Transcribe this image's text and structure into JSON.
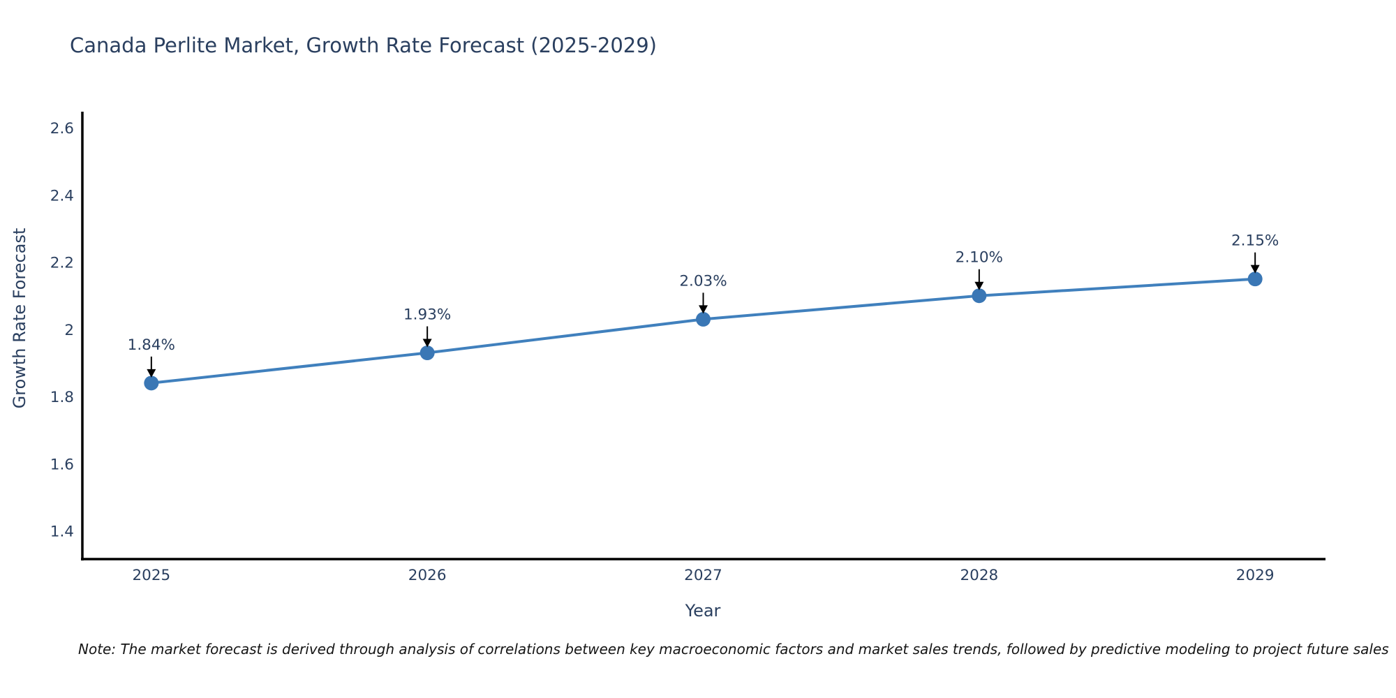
{
  "chart": {
    "note": "Note: The market forecast is derived through analysis of correlations between key macroeconomic factors and market sales trends, followed by predictive modeling to project future sales"
  },
  "chart_data": {
    "type": "line",
    "title": "Canada Perlite Market, Growth Rate Forecast (2025-2029)",
    "xlabel": "Year",
    "ylabel": "Growth Rate Forecast",
    "x": [
      2025,
      2026,
      2027,
      2028,
      2029
    ],
    "values": [
      1.84,
      1.93,
      2.03,
      2.1,
      2.15
    ],
    "point_labels": [
      "1.84%",
      "1.93%",
      "2.03%",
      "2.10%",
      "2.15%"
    ],
    "x_tick_labels": [
      "2025",
      "2026",
      "2027",
      "2028",
      "2029"
    ],
    "y_ticks": [
      2.6,
      2.4,
      2.2,
      2.0,
      1.8,
      1.6,
      1.4
    ],
    "y_tick_labels": [
      "2.6",
      "2.4",
      "2.2",
      "2",
      "1.8",
      "1.6",
      "1.4"
    ],
    "ylim": [
      1.316,
      2.648
    ],
    "xlim": [
      2024.75,
      2029.25
    ],
    "grid": false,
    "legend_position": "none",
    "colors": {
      "line": "#4080bd",
      "marker": "#3a77b5",
      "axis": "#000000",
      "tick_label": "#2a3f5f",
      "annotation_text": "#2a3f5f",
      "annotation_arrow": "#000000"
    }
  }
}
